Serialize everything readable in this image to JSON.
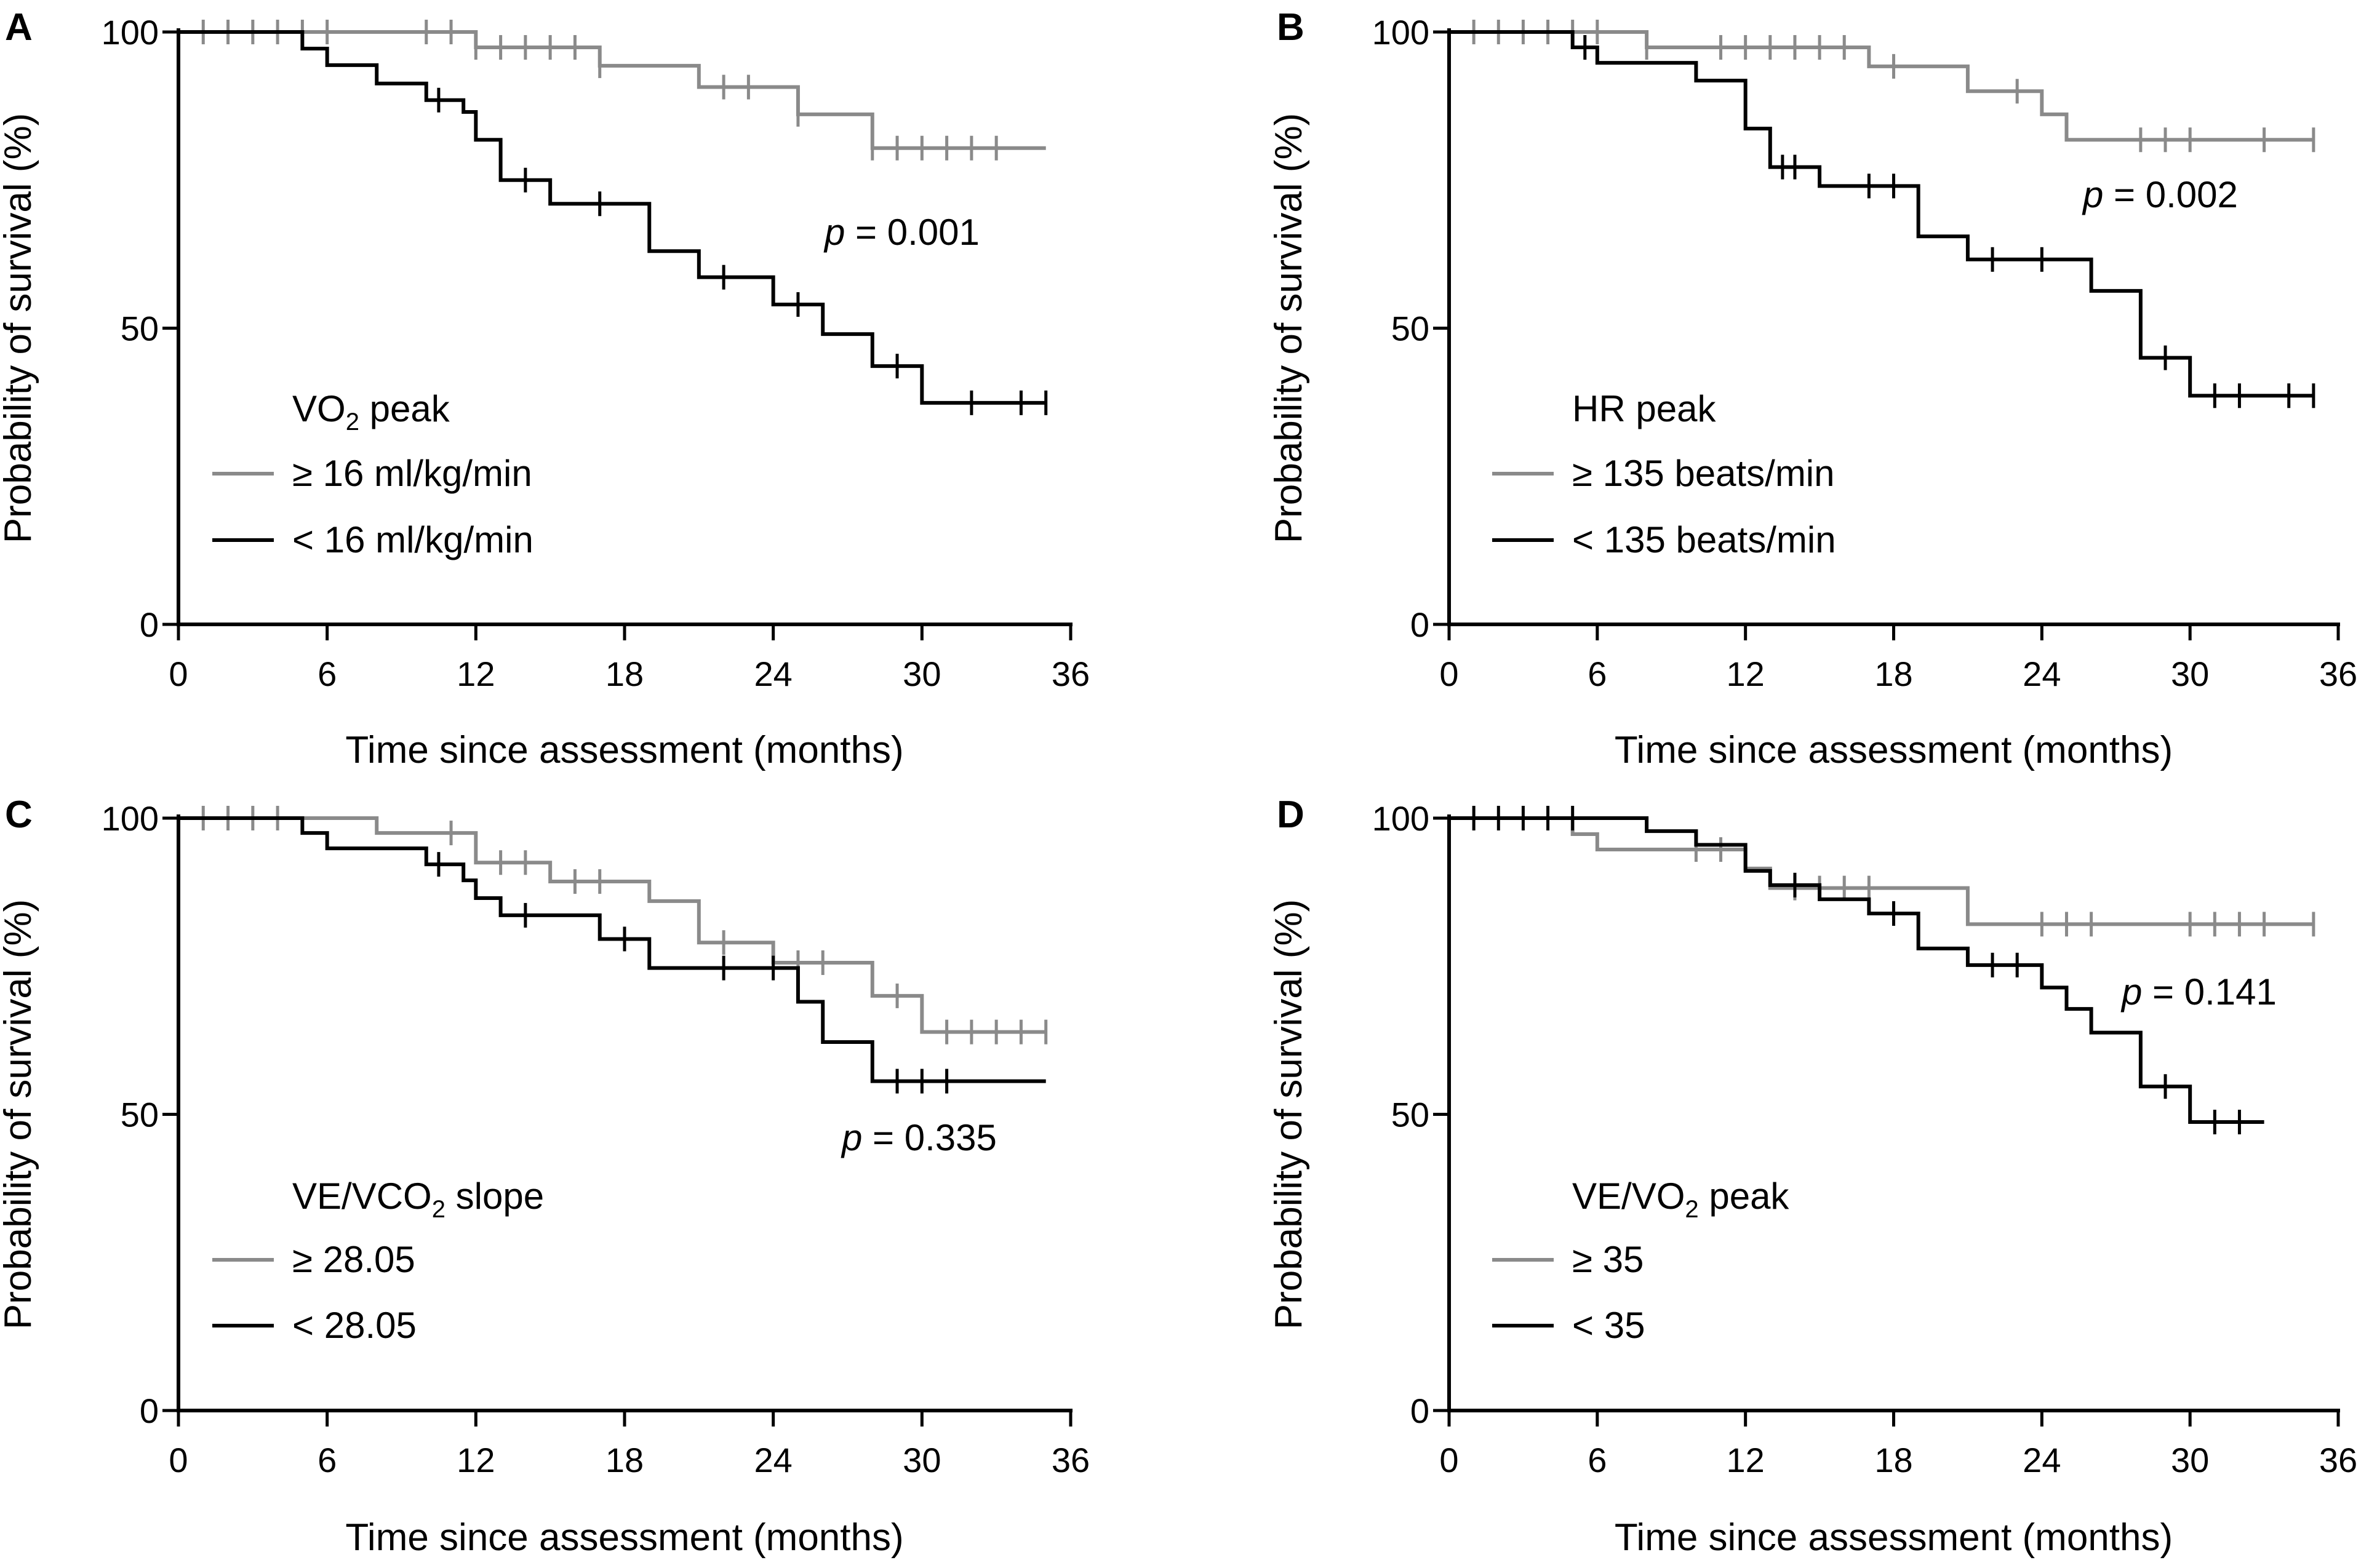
{
  "colors": {
    "gray": "#8a8a8a",
    "black": "#000000"
  },
  "chart_data": [
    {
      "type": "line",
      "panel": "A",
      "xlabel": "Time since assessment (months)",
      "ylabel": "Probability of survival (%)",
      "xticks": [
        "0",
        "6",
        "12",
        "18",
        "24",
        "30",
        "36"
      ],
      "yticks": [
        "0",
        "50",
        "100"
      ],
      "xlim": [
        0,
        36
      ],
      "ylim": [
        0,
        100
      ],
      "legend_title": "VO",
      "legend_title_sub": "2",
      "legend_title_rest": " peak",
      "p_value": "= 0.001",
      "p_symbol": "p",
      "series": [
        {
          "name": "≥ 16 ml/kg/min",
          "color": "gray",
          "steps": [
            [
              0,
              100
            ],
            [
              12,
              97.4
            ],
            [
              17,
              94.3
            ],
            [
              21,
              90.7
            ],
            [
              25,
              86.1
            ],
            [
              28,
              80.4
            ],
            [
              35,
              80.4
            ]
          ],
          "censors": [
            [
              1,
              100
            ],
            [
              2,
              100
            ],
            [
              3,
              100
            ],
            [
              4,
              100
            ],
            [
              5,
              100
            ],
            [
              6,
              100
            ],
            [
              10,
              100
            ],
            [
              11,
              100
            ],
            [
              12,
              97.4
            ],
            [
              13,
              97.4
            ],
            [
              14,
              97.4
            ],
            [
              15,
              97.4
            ],
            [
              16,
              97.4
            ],
            [
              17,
              94.3
            ],
            [
              22,
              90.7
            ],
            [
              23,
              90.7
            ],
            [
              25,
              86.1
            ],
            [
              28,
              80.4
            ],
            [
              29,
              80.4
            ],
            [
              30,
              80.4
            ],
            [
              31,
              80.4
            ],
            [
              32,
              80.4
            ],
            [
              33,
              80.4
            ]
          ]
        },
        {
          "name": "< 16 ml/kg/min",
          "color": "black",
          "steps": [
            [
              0,
              100
            ],
            [
              5,
              97.2
            ],
            [
              6,
              94.4
            ],
            [
              8,
              91.3
            ],
            [
              10,
              88.5
            ],
            [
              11.5,
              86.5
            ],
            [
              12,
              81.8
            ],
            [
              13,
              75.0
            ],
            [
              15,
              71.0
            ],
            [
              19,
              63.0
            ],
            [
              21,
              58.6
            ],
            [
              24,
              54.0
            ],
            [
              26,
              49.0
            ],
            [
              28,
              43.6
            ],
            [
              30,
              37.4
            ],
            [
              35,
              37.4
            ]
          ],
          "censors": [
            [
              10.5,
              88.5
            ],
            [
              14,
              75.0
            ],
            [
              17,
              71.0
            ],
            [
              22,
              58.6
            ],
            [
              25,
              54.0
            ],
            [
              29,
              43.6
            ],
            [
              32,
              37.4
            ],
            [
              34,
              37.4
            ],
            [
              35,
              37.4
            ]
          ]
        }
      ]
    },
    {
      "type": "line",
      "panel": "B",
      "xlabel": "Time since assessment (months)",
      "ylabel": "Probability of survival (%)",
      "xticks": [
        "0",
        "6",
        "12",
        "18",
        "24",
        "30",
        "36"
      ],
      "yticks": [
        "0",
        "50",
        "100"
      ],
      "xlim": [
        0,
        36
      ],
      "ylim": [
        0,
        100
      ],
      "legend_title": "HR peak",
      "legend_title_sub": "",
      "legend_title_rest": "",
      "p_value": "= 0.002",
      "p_symbol": "p",
      "series": [
        {
          "name": "≥ 135 beats/min",
          "color": "gray",
          "steps": [
            [
              0,
              100
            ],
            [
              8,
              97.4
            ],
            [
              17,
              94.2
            ],
            [
              21,
              90.0
            ],
            [
              24,
              86.1
            ],
            [
              25,
              81.8
            ],
            [
              35,
              81.8
            ]
          ],
          "censors": [
            [
              1,
              100
            ],
            [
              2,
              100
            ],
            [
              3,
              100
            ],
            [
              4,
              100
            ],
            [
              5,
              100
            ],
            [
              6,
              100
            ],
            [
              8,
              97.4
            ],
            [
              11,
              97.4
            ],
            [
              12,
              97.4
            ],
            [
              13,
              97.4
            ],
            [
              14,
              97.4
            ],
            [
              15,
              97.4
            ],
            [
              16,
              97.4
            ],
            [
              18,
              94.2
            ],
            [
              23,
              90.0
            ],
            [
              28,
              81.8
            ],
            [
              29,
              81.8
            ],
            [
              30,
              81.8
            ],
            [
              33,
              81.8
            ],
            [
              35,
              81.8
            ]
          ]
        },
        {
          "name": "< 135 beats/min",
          "color": "black",
          "steps": [
            [
              0,
              100
            ],
            [
              5,
              97.4
            ],
            [
              6,
              94.8
            ],
            [
              10,
              91.8
            ],
            [
              12,
              83.7
            ],
            [
              13,
              77.2
            ],
            [
              15,
              74.0
            ],
            [
              19,
              65.5
            ],
            [
              21,
              61.6
            ],
            [
              26,
              56.3
            ],
            [
              28,
              45.0
            ],
            [
              30,
              38.6
            ],
            [
              35,
              38.6
            ]
          ],
          "censors": [
            [
              5.5,
              97.4
            ],
            [
              13.5,
              77.2
            ],
            [
              14,
              77.2
            ],
            [
              17,
              74.0
            ],
            [
              18,
              74.0
            ],
            [
              22,
              61.6
            ],
            [
              24,
              61.6
            ],
            [
              29,
              45.0
            ],
            [
              31,
              38.6
            ],
            [
              32,
              38.6
            ],
            [
              34,
              38.6
            ],
            [
              35,
              38.6
            ]
          ]
        }
      ]
    },
    {
      "type": "line",
      "panel": "C",
      "xlabel": "Time since assessment (months)",
      "ylabel": "Probability of survival (%)",
      "xticks": [
        "0",
        "6",
        "12",
        "18",
        "24",
        "30",
        "36"
      ],
      "yticks": [
        "0",
        "50",
        "100"
      ],
      "xlim": [
        0,
        36
      ],
      "ylim": [
        0,
        100
      ],
      "legend_title": "VE/VCO",
      "legend_title_sub": "2",
      "legend_title_rest": " slope",
      "p_value": "= 0.335",
      "p_symbol": "p",
      "series": [
        {
          "name": "≥ 28.05",
          "color": "gray",
          "steps": [
            [
              0,
              100
            ],
            [
              8,
              97.5
            ],
            [
              12,
              92.5
            ],
            [
              15,
              89.3
            ],
            [
              19,
              86.0
            ],
            [
              21,
              79.0
            ],
            [
              24,
              75.6
            ],
            [
              28,
              70.0
            ],
            [
              30,
              63.9
            ],
            [
              35,
              63.9
            ]
          ],
          "censors": [
            [
              1,
              100
            ],
            [
              2,
              100
            ],
            [
              3,
              100
            ],
            [
              4,
              100
            ],
            [
              11,
              97.5
            ],
            [
              13,
              92.5
            ],
            [
              14,
              92.5
            ],
            [
              16,
              89.3
            ],
            [
              17,
              89.3
            ],
            [
              22,
              79.0
            ],
            [
              25,
              75.6
            ],
            [
              26,
              75.6
            ],
            [
              29,
              70.0
            ],
            [
              31,
              63.9
            ],
            [
              32,
              63.9
            ],
            [
              33,
              63.9
            ],
            [
              34,
              63.9
            ],
            [
              35,
              63.9
            ]
          ]
        },
        {
          "name": "< 28.05",
          "color": "black",
          "steps": [
            [
              0,
              100
            ],
            [
              5,
              97.5
            ],
            [
              6,
              94.9
            ],
            [
              10,
              92.2
            ],
            [
              11.5,
              89.5
            ],
            [
              12,
              86.5
            ],
            [
              13,
              83.6
            ],
            [
              17,
              79.6
            ],
            [
              19,
              74.7
            ],
            [
              25,
              69.0
            ],
            [
              26,
              62.2
            ],
            [
              28,
              55.6
            ],
            [
              35,
              55.6
            ]
          ],
          "censors": [
            [
              10.5,
              92.2
            ],
            [
              14,
              83.6
            ],
            [
              18,
              79.6
            ],
            [
              22,
              74.7
            ],
            [
              24,
              74.7
            ],
            [
              29,
              55.6
            ],
            [
              30,
              55.6
            ],
            [
              31,
              55.6
            ]
          ]
        }
      ]
    },
    {
      "type": "line",
      "panel": "D",
      "xlabel": "Time since assessment (months)",
      "ylabel": "Probability of survival (%)",
      "xticks": [
        "0",
        "6",
        "12",
        "18",
        "24",
        "30",
        "36"
      ],
      "yticks": [
        "0",
        "50",
        "100"
      ],
      "xlim": [
        0,
        36
      ],
      "ylim": [
        0,
        100
      ],
      "legend_title": "VE/VO",
      "legend_title_sub": "2",
      "legend_title_rest": " peak",
      "p_value": "= 0.141",
      "p_symbol": "p",
      "series": [
        {
          "name": "≥ 35",
          "color": "gray",
          "steps": [
            [
              0,
              100
            ],
            [
              5,
              97.3
            ],
            [
              6,
              94.7
            ],
            [
              12,
              91.5
            ],
            [
              13,
              88.2
            ],
            [
              21,
              82.1
            ],
            [
              35,
              82.1
            ]
          ],
          "censors": [
            [
              10,
              94.7
            ],
            [
              11,
              94.7
            ],
            [
              14,
              88.2
            ],
            [
              15,
              88.2
            ],
            [
              16,
              88.2
            ],
            [
              17,
              88.2
            ],
            [
              24,
              82.1
            ],
            [
              25,
              82.1
            ],
            [
              26,
              82.1
            ],
            [
              30,
              82.1
            ],
            [
              31,
              82.1
            ],
            [
              32,
              82.1
            ],
            [
              33,
              82.1
            ],
            [
              35,
              82.1
            ]
          ]
        },
        {
          "name": "< 35",
          "color": "black",
          "steps": [
            [
              0,
              100
            ],
            [
              8,
              97.8
            ],
            [
              10,
              95.5
            ],
            [
              12,
              91.1
            ],
            [
              13,
              88.7
            ],
            [
              15,
              86.3
            ],
            [
              17,
              83.9
            ],
            [
              19,
              78.0
            ],
            [
              21,
              75.2
            ],
            [
              24,
              71.4
            ],
            [
              25,
              67.8
            ],
            [
              26,
              63.8
            ],
            [
              28,
              54.7
            ],
            [
              30,
              48.7
            ],
            [
              33,
              48.7
            ]
          ],
          "censors": [
            [
              1,
              100
            ],
            [
              2,
              100
            ],
            [
              3,
              100
            ],
            [
              4,
              100
            ],
            [
              5,
              100
            ],
            [
              14,
              88.7
            ],
            [
              18,
              83.9
            ],
            [
              22,
              75.2
            ],
            [
              23,
              75.2
            ],
            [
              29,
              54.7
            ],
            [
              31,
              48.7
            ],
            [
              32,
              48.7
            ]
          ]
        }
      ]
    }
  ]
}
